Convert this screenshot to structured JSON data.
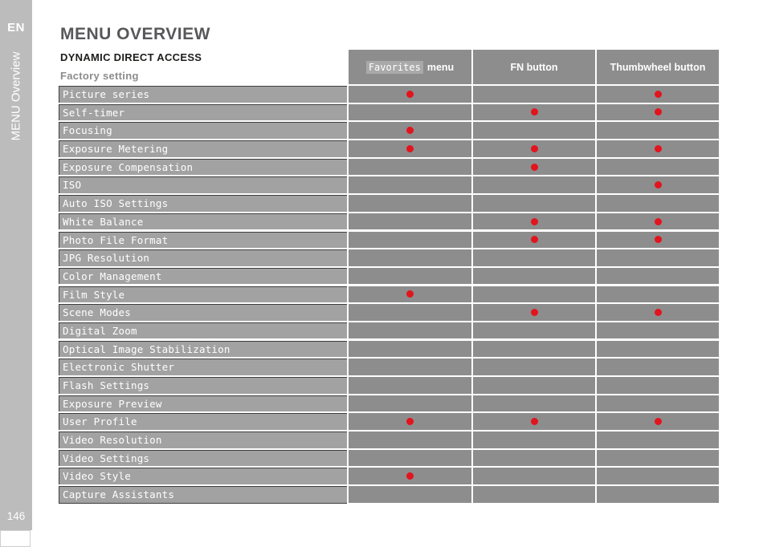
{
  "sidebar": {
    "language": "EN",
    "vertical_label": "MENU Overview",
    "page_number": "146"
  },
  "header": {
    "title": "MENU OVERVIEW",
    "section": "DYNAMIC DIRECT ACCESS",
    "subsection": "Factory setting"
  },
  "table": {
    "columns": [
      {
        "highlight": "Favorites",
        "rest": "menu"
      },
      {
        "label": "FN button"
      },
      {
        "label": "Thumbwheel button"
      }
    ],
    "rows": [
      {
        "label": "Picture series",
        "dots": [
          1,
          0,
          1
        ]
      },
      {
        "label": "Self-timer",
        "dots": [
          0,
          1,
          1
        ]
      },
      {
        "label": "Focusing",
        "dots": [
          1,
          0,
          0
        ]
      },
      {
        "label": "Exposure Metering",
        "dots": [
          1,
          1,
          1
        ]
      },
      {
        "label": "Exposure Compensation",
        "dots": [
          0,
          1,
          0
        ]
      },
      {
        "label": "ISO",
        "dots": [
          0,
          0,
          1
        ]
      },
      {
        "label": "Auto ISO Settings",
        "dots": [
          0,
          0,
          0
        ]
      },
      {
        "label": "White Balance",
        "dots": [
          0,
          1,
          1
        ]
      },
      {
        "label": "Photo File Format",
        "dots": [
          0,
          1,
          1
        ]
      },
      {
        "label": "JPG Resolution",
        "dots": [
          0,
          0,
          0
        ]
      },
      {
        "label": "Color Management",
        "dots": [
          0,
          0,
          0
        ]
      },
      {
        "label": "Film Style",
        "dots": [
          1,
          0,
          0
        ]
      },
      {
        "label": "Scene Modes",
        "dots": [
          0,
          1,
          1
        ]
      },
      {
        "label": "Digital Zoom",
        "dots": [
          0,
          0,
          0
        ]
      },
      {
        "label": "Optical Image Stabilization",
        "dots": [
          0,
          0,
          0
        ]
      },
      {
        "label": "Electronic Shutter",
        "dots": [
          0,
          0,
          0
        ]
      },
      {
        "label": "Flash Settings",
        "dots": [
          0,
          0,
          0
        ]
      },
      {
        "label": "Exposure Preview",
        "dots": [
          0,
          0,
          0
        ]
      },
      {
        "label": "User Profile",
        "dots": [
          1,
          1,
          1
        ]
      },
      {
        "label": "Video Resolution",
        "dots": [
          0,
          0,
          0
        ]
      },
      {
        "label": "Video Settings",
        "dots": [
          0,
          0,
          0
        ]
      },
      {
        "label": "Video Style",
        "dots": [
          1,
          0,
          0
        ]
      },
      {
        "label": "Capture Assistants",
        "dots": [
          0,
          0,
          0
        ]
      }
    ]
  },
  "colors": {
    "sidebar_bg": "#bcbcbc",
    "title_text": "#58585b",
    "section_text": "#1d1d1b",
    "subsection_text": "#8c8c8c",
    "header_cell_bg": "#8d8d8d",
    "favorites_highlight_bg": "#a9a9a9",
    "label_cell_bg": "#a2a2a2",
    "dot_cell_bg": "#8d8d8d",
    "cell_border": "#3d3d3d",
    "dot_red": "#e2141d"
  }
}
